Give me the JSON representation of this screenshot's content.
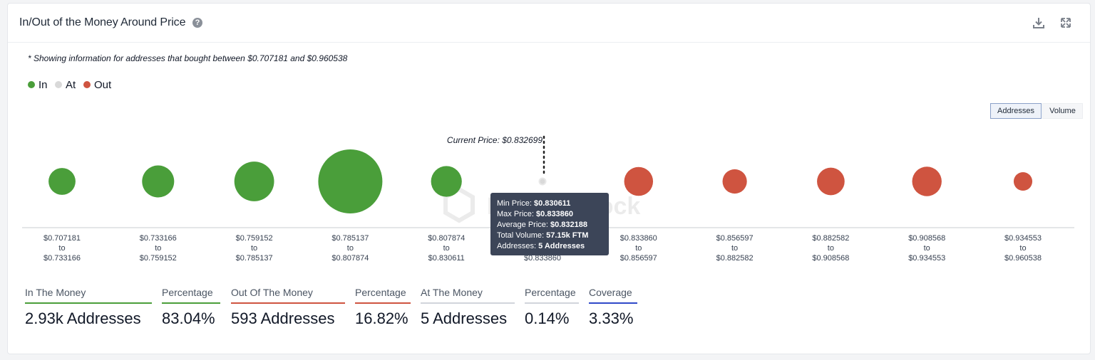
{
  "header": {
    "title": "In/Out of the Money Around Price",
    "help_icon": "question-circle-icon",
    "download_icon": "download-icon",
    "expand_icon": "expand-icon"
  },
  "note": "* Showing information for addresses that bought between $0.707181 and $0.960538",
  "legend": [
    {
      "label": "In",
      "color": "#4a9e3a"
    },
    {
      "label": "At",
      "color": "#d9d9d9"
    },
    {
      "label": "Out",
      "color": "#cf5440"
    }
  ],
  "toggles": {
    "addresses": "Addresses",
    "volume": "Volume"
  },
  "watermark": "IntoTheBlock",
  "chart_data": {
    "type": "scatter",
    "description_measure": "bubble size = number of addresses",
    "current_price_label": "Current Price: $0.832699",
    "current_price_index": 5,
    "categories": [
      {
        "from": "$0.707181",
        "to": "$0.733166",
        "status": "in",
        "size": 0.42
      },
      {
        "from": "$0.733166",
        "to": "$0.759152",
        "status": "in",
        "size": 0.5
      },
      {
        "from": "$0.759152",
        "to": "$0.785137",
        "status": "in",
        "size": 0.62
      },
      {
        "from": "$0.785137",
        "to": "$0.807874",
        "status": "in",
        "size": 1.0
      },
      {
        "from": "$0.807874",
        "to": "$0.830611",
        "status": "in",
        "size": 0.48
      },
      {
        "from": "$0.830611",
        "to": "$0.833860",
        "status": "at",
        "size": 0.1
      },
      {
        "from": "$0.833860",
        "to": "$0.856597",
        "status": "out",
        "size": 0.45
      },
      {
        "from": "$0.856597",
        "to": "$0.882582",
        "status": "out",
        "size": 0.38
      },
      {
        "from": "$0.882582",
        "to": "$0.908568",
        "status": "out",
        "size": 0.43
      },
      {
        "from": "$0.908568",
        "to": "$0.934553",
        "status": "out",
        "size": 0.46
      },
      {
        "from": "$0.934553",
        "to": "$0.960538",
        "status": "out",
        "size": 0.29
      }
    ],
    "to_word": "to",
    "tooltip": {
      "min_label": "Min Price:",
      "min_value": "$0.830611",
      "max_label": "Max Price:",
      "max_value": "$0.833860",
      "avg_label": "Average Price:",
      "avg_value": "$0.832188",
      "vol_label": "Total Volume:",
      "vol_value": "57.15k FTM",
      "addr_label": "Addresses:",
      "addr_value": "5 Addresses"
    }
  },
  "stats": [
    {
      "label": "In The Money",
      "value": "2.93k Addresses",
      "color": "#4a9e3a"
    },
    {
      "label": "Percentage",
      "value": "83.04%",
      "color": "#4a9e3a"
    },
    {
      "label": "Out Of The Money",
      "value": "593 Addresses",
      "color": "#cf5440"
    },
    {
      "label": "Percentage",
      "value": "16.82%",
      "color": "#cf5440"
    },
    {
      "label": "At The Money",
      "value": "5 Addresses",
      "color": "#d1d5db"
    },
    {
      "label": "Percentage",
      "value": "0.14%",
      "color": "#d1d5db"
    },
    {
      "label": "Coverage",
      "value": "3.33%",
      "color": "#2f49c9"
    }
  ]
}
